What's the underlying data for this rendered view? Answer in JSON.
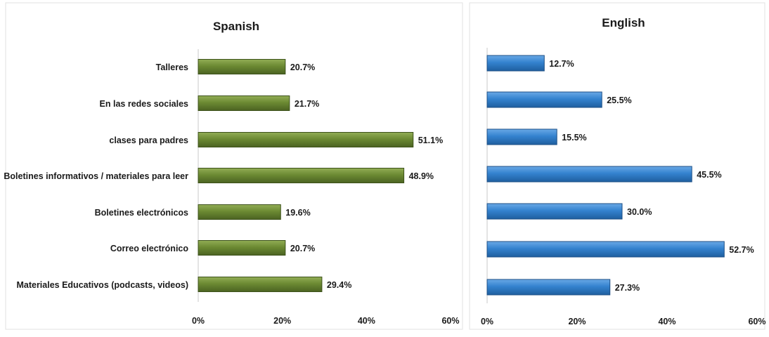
{
  "chart_data": [
    {
      "type": "bar",
      "orientation": "horizontal",
      "title": "Spanish",
      "categories": [
        "Talleres",
        "En las redes sociales",
        "clases para padres",
        "Boletines informativos / materiales para leer",
        "Boletines electrónicos",
        "Correo electrónico",
        "Materiales Educativos (podcasts, videos)"
      ],
      "values": [
        20.7,
        21.7,
        51.1,
        48.9,
        19.6,
        20.7,
        29.4
      ],
      "value_labels": [
        "20.7%",
        "21.7%",
        "51.1%",
        "48.9%",
        "19.6%",
        "20.7%",
        "29.4%"
      ],
      "xlim": [
        0,
        60
      ],
      "xticks": [
        "0%",
        "20%",
        "40%",
        "60%"
      ],
      "color": "#5f7a2e",
      "grid": false
    },
    {
      "type": "bar",
      "orientation": "horizontal",
      "title": "English",
      "categories": [
        "Talleres",
        "En las redes sociales",
        "clases para padres",
        "Boletines informativos / materiales para leer",
        "Boletines electrónicos",
        "Correo electrónico",
        "Materiales Educativos (podcasts, videos)"
      ],
      "values": [
        12.7,
        25.5,
        15.5,
        45.5,
        30.0,
        52.7,
        27.3
      ],
      "value_labels": [
        "12.7%",
        "25.5%",
        "15.5%",
        "45.5%",
        "30.0%",
        "52.7%",
        "27.3%"
      ],
      "xlim": [
        0,
        60
      ],
      "xticks": [
        "0%",
        "20%",
        "40%",
        "60%"
      ],
      "color": "#2f79c6",
      "grid": false
    }
  ]
}
